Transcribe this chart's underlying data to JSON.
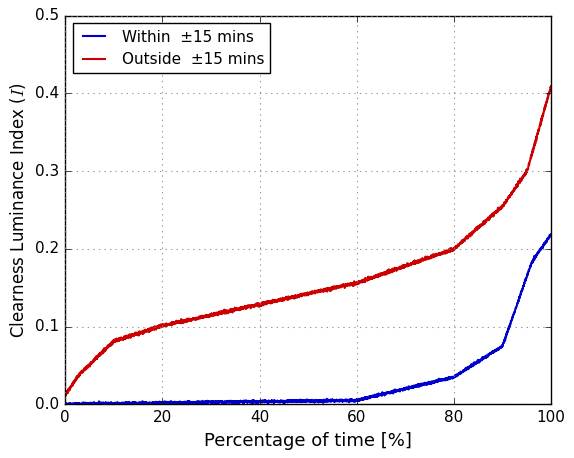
{
  "title": "",
  "xlabel": "Percentage of time [%]",
  "ylabel": "Clearness Luminance Index ($I$)",
  "xlim": [
    0,
    100
  ],
  "ylim": [
    0,
    0.5
  ],
  "xticks": [
    0,
    20,
    40,
    60,
    80,
    100
  ],
  "yticks": [
    0.0,
    0.1,
    0.2,
    0.3,
    0.4,
    0.5
  ],
  "legend_within": "Within  ±15 mins",
  "legend_outside": "Outside  ±15 mins",
  "within_color": "#0000cc",
  "outside_color": "#cc0000",
  "linewidth": 1.5,
  "figsize": [
    5.74,
    4.58
  ],
  "dpi": 100
}
